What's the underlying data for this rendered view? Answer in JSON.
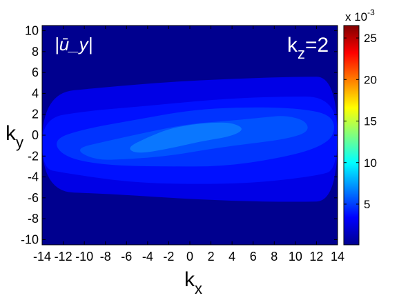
{
  "chart_data": {
    "type": "heatmap",
    "title": "",
    "annotation_field": "|ū_y|",
    "annotation_kz": {
      "base": "k",
      "sub": "z",
      "rest": "=2"
    },
    "xlabel": {
      "base": "k",
      "sub": "x"
    },
    "ylabel": {
      "base": "k",
      "sub": "y"
    },
    "xlim": [
      -14,
      14
    ],
    "ylim": [
      -10.5,
      10.5
    ],
    "xticks": [
      -14,
      -12,
      -10,
      -8,
      -6,
      -4,
      -2,
      0,
      2,
      4,
      6,
      8,
      10,
      12,
      14
    ],
    "yticks": [
      -10,
      -8,
      -6,
      -4,
      -2,
      0,
      2,
      4,
      6,
      8,
      10
    ],
    "colorbar": {
      "range": [
        0.0001,
        0.0265
      ],
      "ticks": [
        5,
        10,
        15,
        20,
        25
      ],
      "exponent_label": "x 10",
      "exponent": "-3",
      "colormap": "jet"
    },
    "contours": [
      {
        "level": 0.0024,
        "color": "#0000e6",
        "points": [
          [
            -14,
            4.0
          ],
          [
            -8,
            4.6
          ],
          [
            -2,
            5.1
          ],
          [
            4,
            5.4
          ],
          [
            10,
            5.6
          ],
          [
            14,
            5.6
          ],
          [
            14,
            -6.3
          ],
          [
            10,
            -6.4
          ],
          [
            4,
            -6.3
          ],
          [
            -2,
            -6.0
          ],
          [
            -8,
            -5.6
          ],
          [
            -14,
            -5.4
          ]
        ]
      },
      {
        "level": 0.0032,
        "color": "#0010ff",
        "points": [
          [
            -14,
            1.6
          ],
          [
            -10,
            2.3
          ],
          [
            -4,
            2.8
          ],
          [
            2,
            3.4
          ],
          [
            8,
            3.7
          ],
          [
            14,
            3.7
          ],
          [
            14,
            -3.3
          ],
          [
            12,
            -3.9
          ],
          [
            6,
            -4.6
          ],
          [
            0,
            -4.7
          ],
          [
            -6,
            -4.5
          ],
          [
            -12,
            -3.6
          ],
          [
            -14,
            -3.2
          ]
        ]
      },
      {
        "level": 0.004,
        "color": "#0033ff",
        "points": [
          [
            -13,
            -0.4
          ],
          [
            -10,
            0.6
          ],
          [
            -5,
            1.5
          ],
          [
            0,
            2.4
          ],
          [
            5,
            2.7
          ],
          [
            10,
            2.6
          ],
          [
            13.5,
            2.0
          ],
          [
            13.8,
            0.0
          ],
          [
            12,
            -1.3
          ],
          [
            8,
            -2.3
          ],
          [
            3,
            -3.0
          ],
          [
            -2,
            -3.0
          ],
          [
            -8,
            -2.9
          ],
          [
            -12,
            -2.1
          ]
        ]
      },
      {
        "level": 0.0048,
        "color": "#0052ff",
        "points": [
          [
            -11,
            -1.3
          ],
          [
            -8,
            -0.6
          ],
          [
            -4,
            0.3
          ],
          [
            0,
            1.1
          ],
          [
            4,
            1.4
          ],
          [
            7,
            1.7
          ],
          [
            9,
            1.9
          ],
          [
            11,
            1.4
          ],
          [
            11.3,
            0.3
          ],
          [
            9,
            -0.4
          ],
          [
            5,
            -0.9
          ],
          [
            2,
            -1.3
          ],
          [
            -2,
            -2.0
          ],
          [
            -6,
            -2.3
          ],
          [
            -9,
            -2.4
          ]
        ]
      },
      {
        "level": 0.0056,
        "color": "#0a77ff",
        "points": [
          [
            -6,
            -1.2
          ],
          [
            -4,
            -0.2
          ],
          [
            -2,
            0.6
          ],
          [
            0,
            1.0
          ],
          [
            2,
            1.2
          ],
          [
            4,
            1.2
          ],
          [
            5.2,
            0.6
          ],
          [
            4,
            -0.1
          ],
          [
            1,
            -0.6
          ],
          [
            -2,
            -1.3
          ],
          [
            -5,
            -1.8
          ]
        ]
      }
    ]
  }
}
